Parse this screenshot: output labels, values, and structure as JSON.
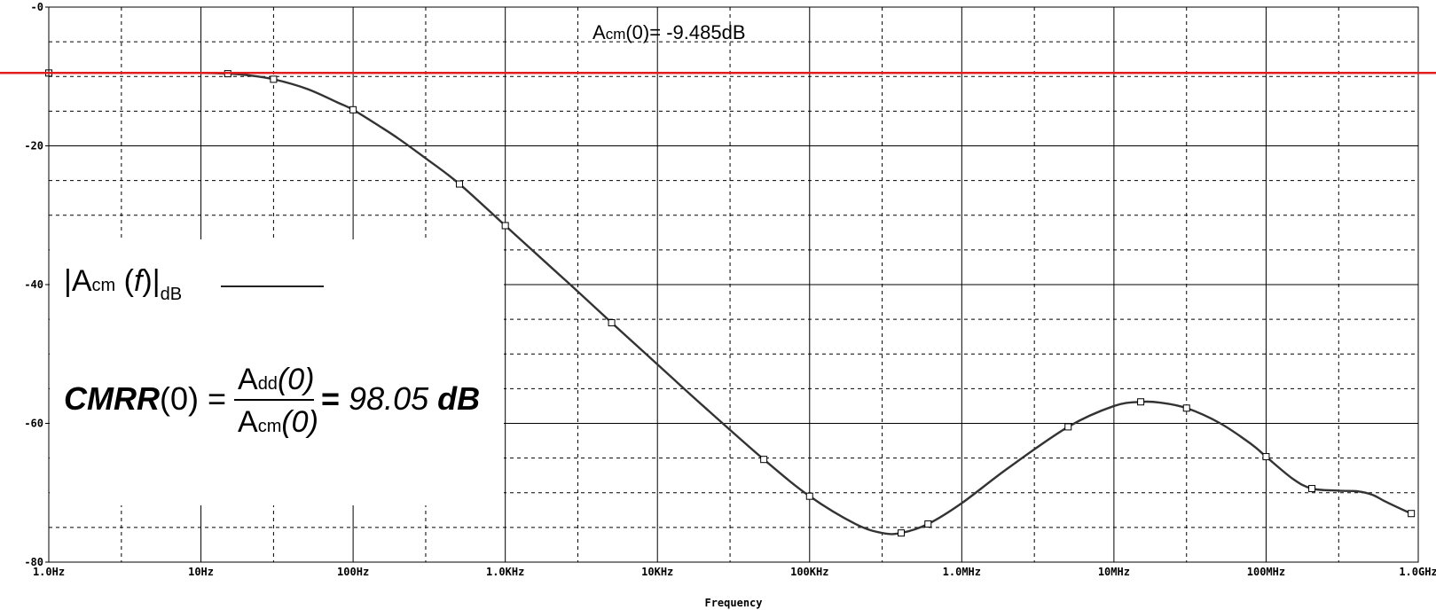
{
  "chart_data": {
    "type": "line",
    "title": "",
    "xlabel": "Frequency",
    "ylabel": "",
    "xscale": "log",
    "xlim": [
      1,
      1000000000
    ],
    "ylim": [
      -80,
      0
    ],
    "grid": true,
    "x_tick_labels": [
      "1.0Hz",
      "10Hz",
      "100Hz",
      "1.0KHz",
      "10KHz",
      "100KHz",
      "1.0MHz",
      "10MHz",
      "100MHz",
      "1.0GHz"
    ],
    "x_tick_values": [
      1,
      10,
      100,
      1000,
      10000,
      100000,
      1000000,
      10000000,
      100000000,
      1000000000
    ],
    "y_tick_labels": [
      "-0",
      "-20",
      "-40",
      "-60",
      "-80"
    ],
    "y_tick_values": [
      0,
      -20,
      -40,
      -60,
      -80
    ],
    "series": [
      {
        "name": "|Acm(f)|dB",
        "color": "#333333",
        "points": [
          [
            1,
            -9.5
          ],
          [
            2,
            -9.5
          ],
          [
            5,
            -9.5
          ],
          [
            10,
            -9.5
          ],
          [
            15,
            -9.6
          ],
          [
            20,
            -9.8
          ],
          [
            30,
            -10.4
          ],
          [
            50,
            -11.8
          ],
          [
            80,
            -13.8
          ],
          [
            100,
            -14.8
          ],
          [
            150,
            -17.2
          ],
          [
            200,
            -19.0
          ],
          [
            300,
            -21.8
          ],
          [
            500,
            -25.5
          ],
          [
            1000,
            -31.5
          ],
          [
            2000,
            -37.5
          ],
          [
            3000,
            -41.0
          ],
          [
            5000,
            -45.5
          ],
          [
            10000,
            -51.5
          ],
          [
            20000,
            -57.5
          ],
          [
            50000,
            -65.2
          ],
          [
            100000,
            -70.5
          ],
          [
            200000,
            -74.5
          ],
          [
            300000,
            -75.8
          ],
          [
            400000,
            -75.8
          ],
          [
            600000,
            -74.5
          ],
          [
            1000000,
            -71.5
          ],
          [
            2000000,
            -66.5
          ],
          [
            5000000,
            -60.5
          ],
          [
            10000000,
            -57.5
          ],
          [
            15000000,
            -56.9
          ],
          [
            20000000,
            -57.0
          ],
          [
            30000000,
            -57.8
          ],
          [
            50000000,
            -60.0
          ],
          [
            80000000,
            -63.0
          ],
          [
            100000000,
            -64.8
          ],
          [
            150000000,
            -68.0
          ],
          [
            200000000,
            -69.4
          ],
          [
            300000000,
            -69.7
          ],
          [
            400000000,
            -69.8
          ],
          [
            500000000,
            -70.3
          ],
          [
            600000000,
            -71.2
          ],
          [
            800000000,
            -72.5
          ],
          [
            900000000,
            -73.0
          ]
        ]
      }
    ],
    "reference_line": {
      "y": -9.485,
      "color": "#e02020"
    },
    "annotations": {
      "acm0_label": "Acm(0)= -9.485dB",
      "acm0_prefix": "A",
      "acm0_sub": "cm",
      "acm0_rest": "(0)= -9.485dB",
      "legend_bar_open": "|A",
      "legend_sub": "cm",
      "legend_mid": " (",
      "legend_f": "f",
      "legend_close": ")|",
      "legend_sub2": "dB",
      "cmrr_label": "CMRR",
      "cmrr_arg": "(0) =",
      "num_A": "A",
      "num_sub": "dd",
      "num_arg": "(0)",
      "den_A": "A",
      "den_sub": "cm",
      "den_arg": "(0)",
      "cmrr_result_eq": "=",
      "cmrr_result_val": "98.05",
      "cmrr_result_unit": "dB"
    }
  }
}
